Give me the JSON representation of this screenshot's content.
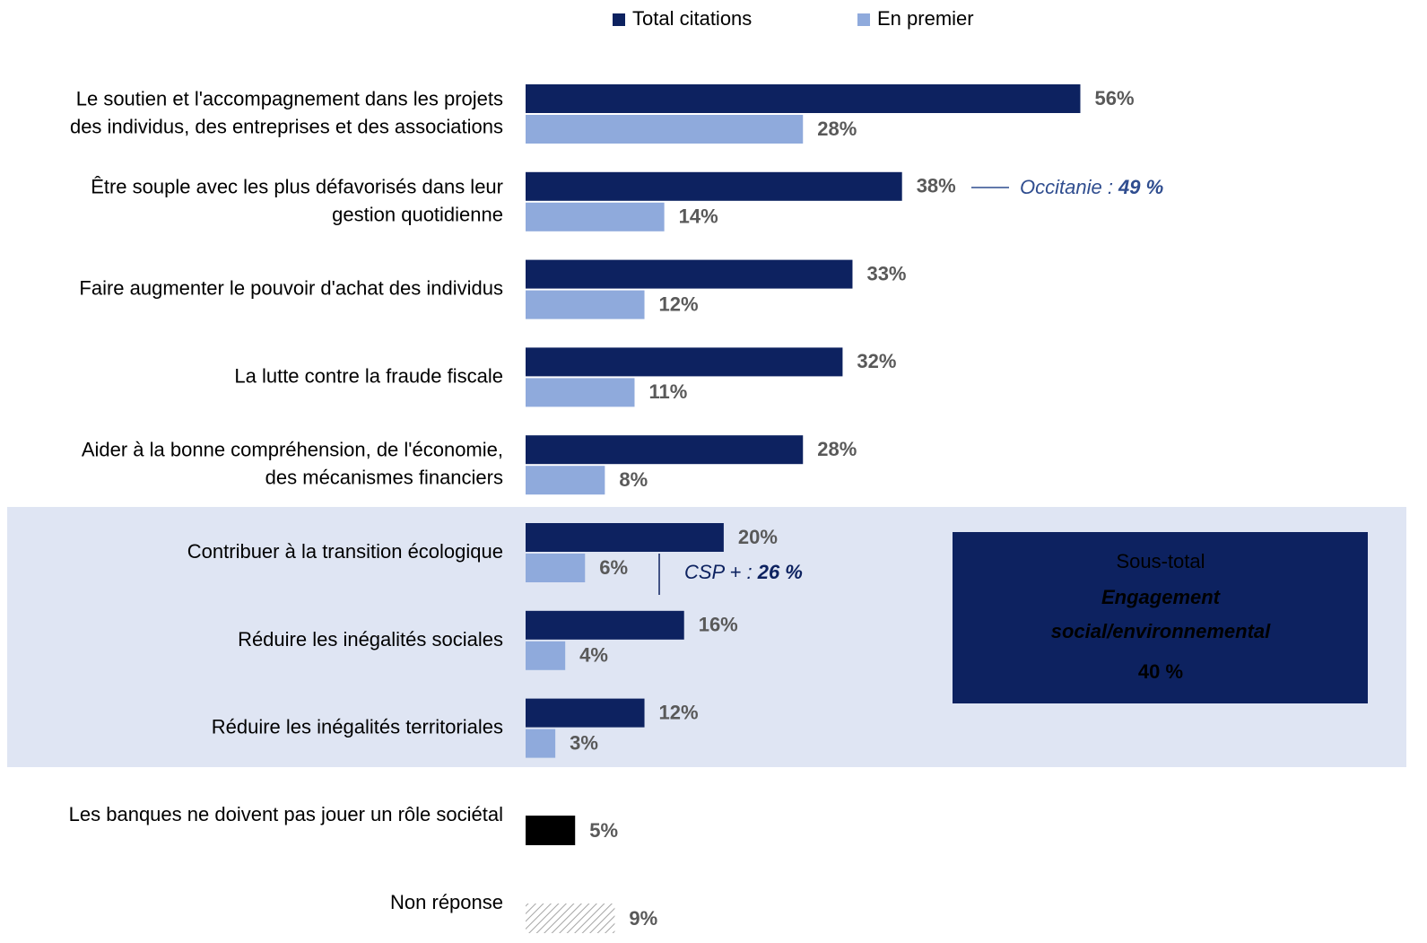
{
  "chart_data": {
    "type": "bar",
    "orientation": "horizontal",
    "legend": "top",
    "xlim": [
      0,
      90
    ],
    "categories": [
      "Le soutien et l'accompagnement dans les projets\ndes individus, des entreprises et des associations",
      "Être souple avec les plus défavorisés dans leur\ngestion quotidienne",
      "Faire augmenter le pouvoir d'achat des individus",
      "La lutte contre la fraude fiscale",
      "Aider à la bonne compréhension, de l'économie,\ndes mécanismes financiers",
      "Contribuer à la transition écologique",
      "Réduire les inégalités sociales",
      "Réduire les inégalités territoriales"
    ],
    "series": [
      {
        "name": "Total citations",
        "color": "#0d2260",
        "values": [
          56,
          38,
          33,
          32,
          28,
          20,
          16,
          12
        ],
        "value_labels": [
          "56%",
          "38%",
          "33%",
          "32%",
          "28%",
          "20%",
          "16%",
          "12%"
        ]
      },
      {
        "name": "En premier",
        "color": "#8faadc",
        "values": [
          28,
          14,
          12,
          11,
          8,
          6,
          4,
          3
        ],
        "value_labels": [
          "28%",
          "14%",
          "12%",
          "11%",
          "8%",
          "6%",
          "4%",
          "3%"
        ]
      }
    ],
    "extra": {
      "categories": [
        "Les banques ne doivent pas jouer un rôle sociétal",
        "Non réponse"
      ],
      "values": [
        5,
        9
      ],
      "value_labels": [
        "5%",
        "9%"
      ],
      "colors": [
        "#000000",
        "#a6a6a6"
      ],
      "hatched": [
        false,
        true
      ]
    },
    "annotations": [
      {
        "text": "Occitanie : ",
        "value": 49,
        "value_label": "49 %"
      },
      {
        "text": "CSP + : ",
        "value": 26,
        "value_label": "26 %"
      }
    ],
    "subtotal": {
      "title": "Sous-total",
      "label": "Engagement social/environnemental",
      "value": 40,
      "value_label": "40 %"
    }
  }
}
